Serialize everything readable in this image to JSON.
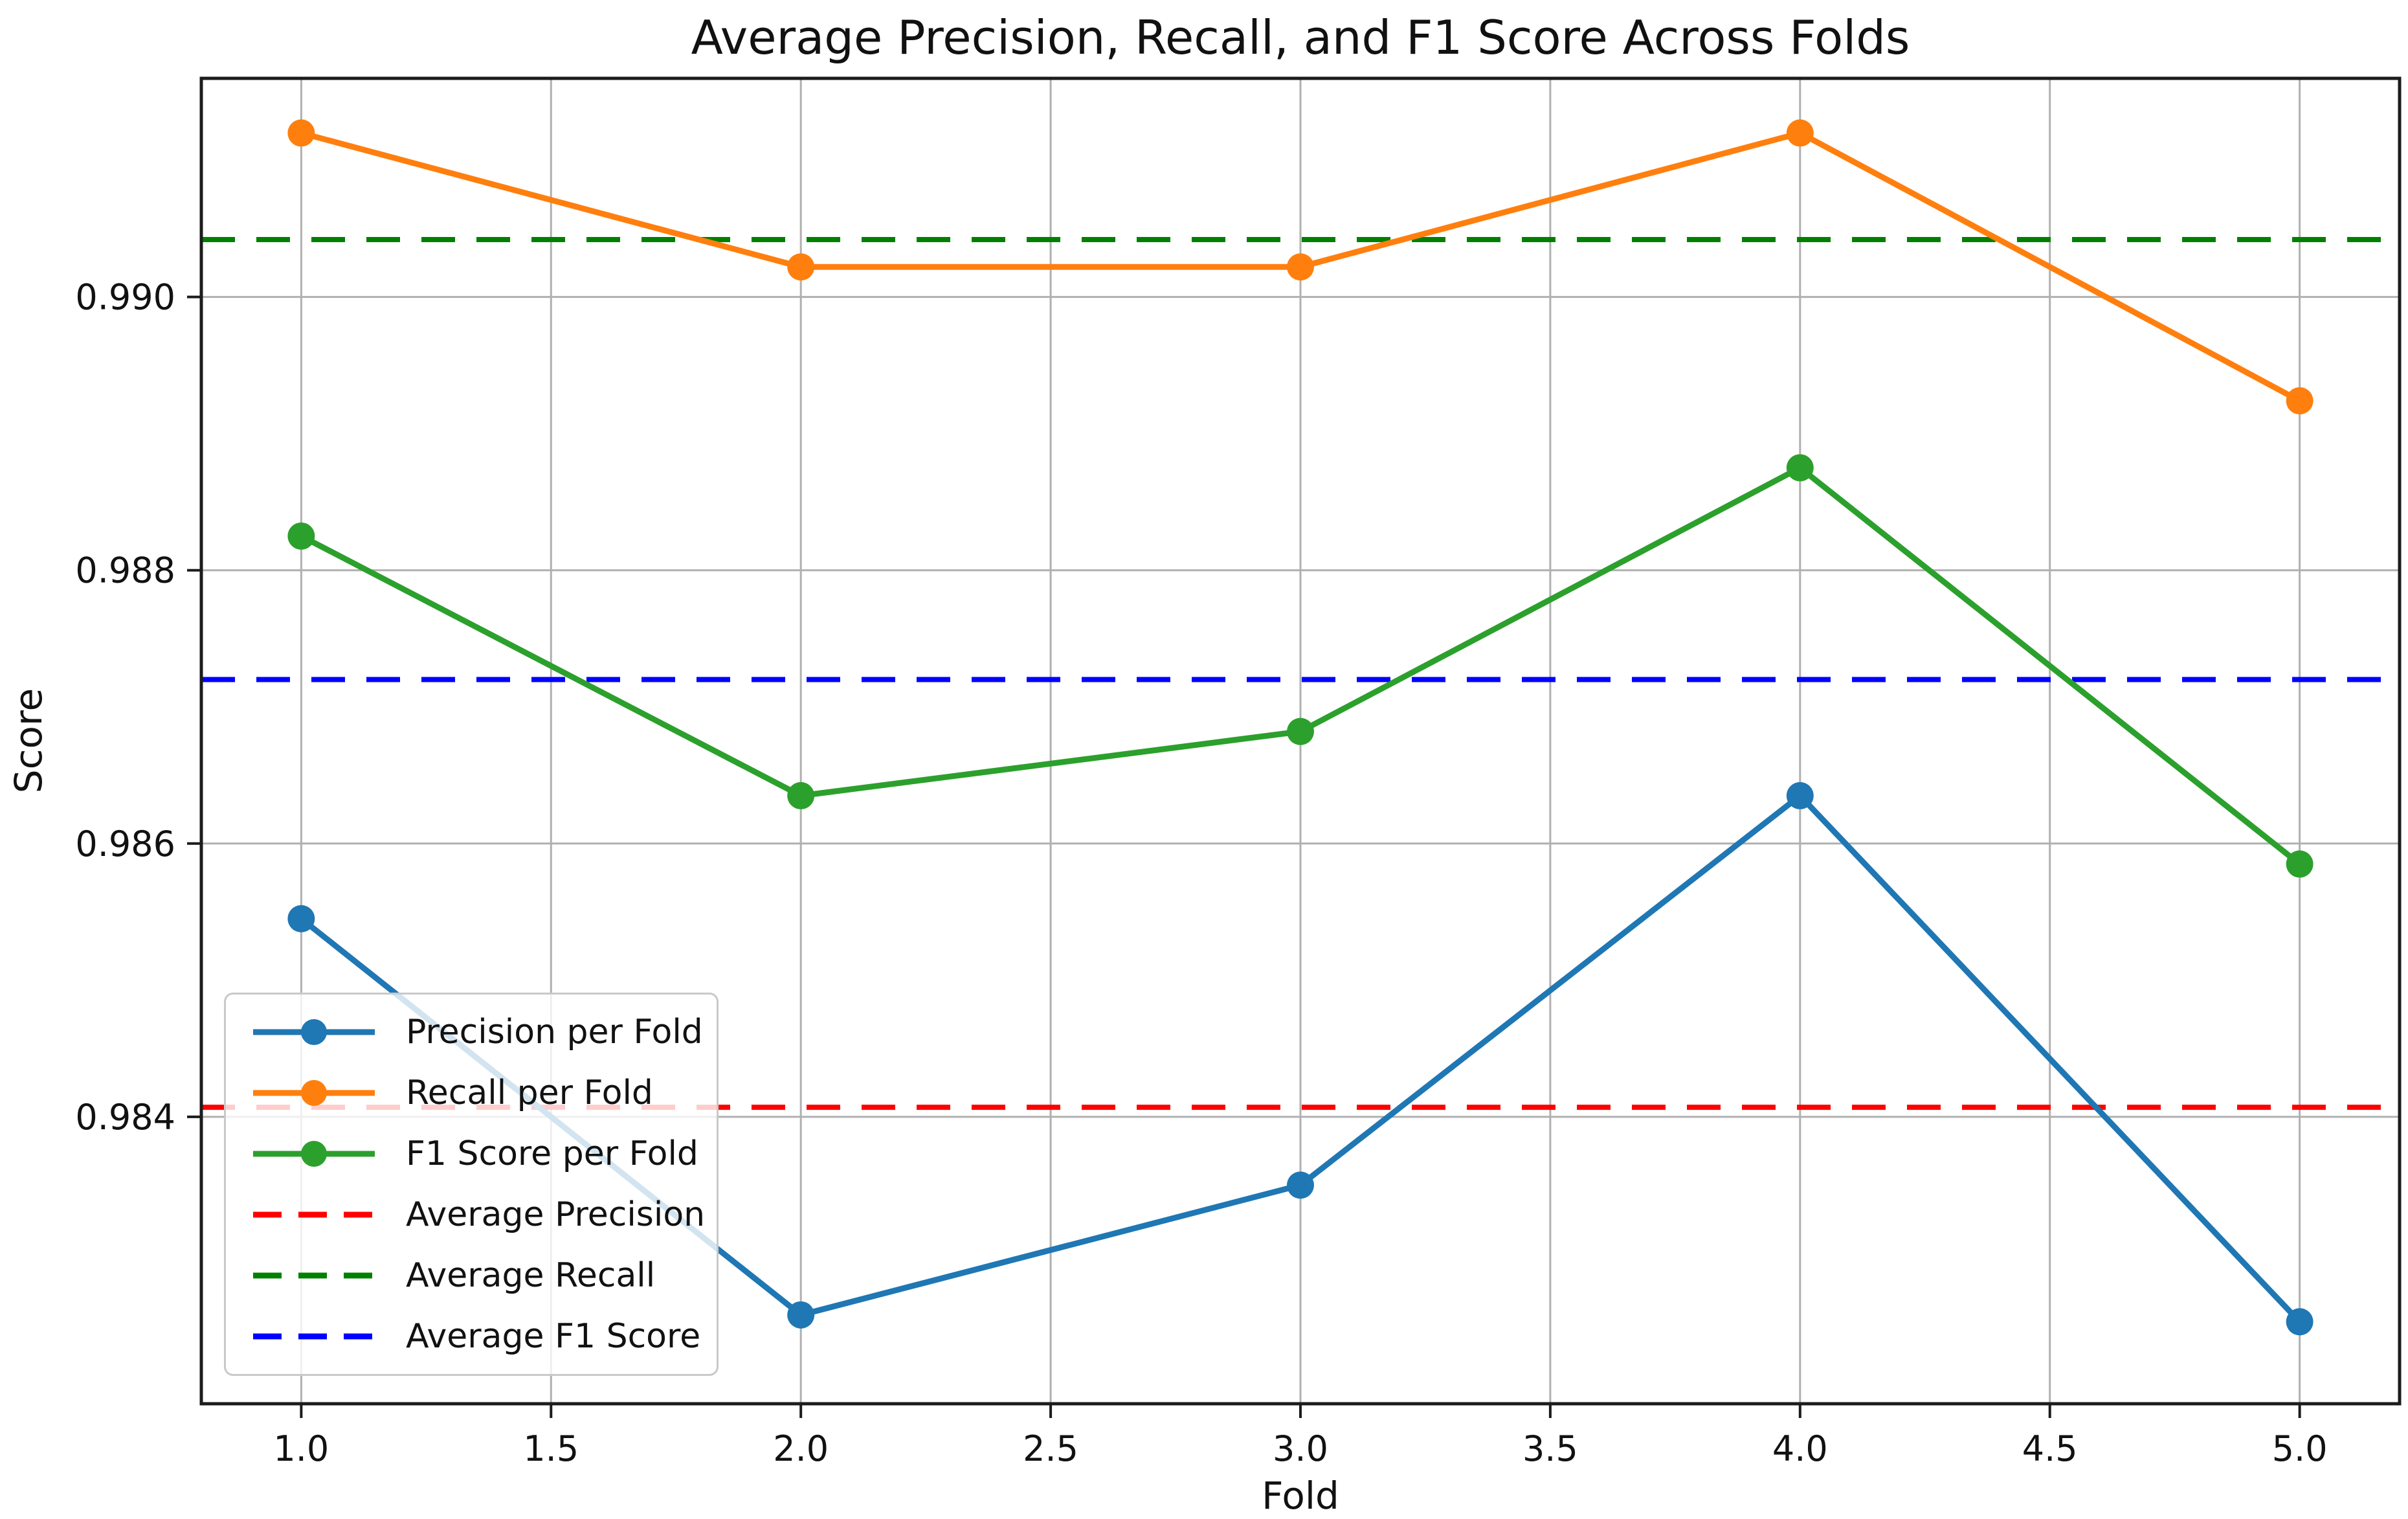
{
  "chart_data": {
    "type": "line",
    "title": "Average Precision, Recall, and F1 Score Across Folds",
    "xlabel": "Fold",
    "ylabel": "Score",
    "x": [
      1,
      2,
      3,
      4,
      5
    ],
    "xlim": [
      0.8,
      5.2
    ],
    "ylim": [
      0.9819,
      0.9916
    ],
    "x_ticks": [
      1.0,
      1.5,
      2.0,
      2.5,
      3.0,
      3.5,
      4.0,
      4.5,
      5.0
    ],
    "x_tick_labels": [
      "1.0",
      "1.5",
      "2.0",
      "2.5",
      "3.0",
      "3.5",
      "4.0",
      "4.5",
      "5.0"
    ],
    "y_ticks": [
      0.984,
      0.986,
      0.988,
      0.99
    ],
    "y_tick_labels": [
      "0.984",
      "0.986",
      "0.988",
      "0.990"
    ],
    "grid": true,
    "legend_position": "lower left",
    "series": [
      {
        "name": "Precision per Fold",
        "kind": "line-marker",
        "color": "#1f77b4",
        "values": [
          0.98545,
          0.98255,
          0.9835,
          0.98635,
          0.9825
        ]
      },
      {
        "name": "Recall per Fold",
        "kind": "line-marker",
        "color": "#ff7f0e",
        "values": [
          0.9912,
          0.99022,
          0.99022,
          0.9912,
          0.98924
        ]
      },
      {
        "name": "F1 Score per Fold",
        "kind": "line-marker",
        "color": "#2ca02c",
        "values": [
          0.98825,
          0.98635,
          0.98682,
          0.98875,
          0.98585
        ]
      },
      {
        "name": "Average Precision",
        "kind": "hline-dashed",
        "color": "#ff0000",
        "value": 0.98407
      },
      {
        "name": "Average Recall",
        "kind": "hline-dashed",
        "color": "#008000",
        "value": 0.99042
      },
      {
        "name": "Average F1 Score",
        "kind": "hline-dashed",
        "color": "#0000ff",
        "value": 0.9872
      }
    ]
  },
  "colors": {
    "grid": "#b0b0b0",
    "spine": "#1c1c1c",
    "tick_text": "#111111",
    "legend_border": "#c9c9c9"
  }
}
